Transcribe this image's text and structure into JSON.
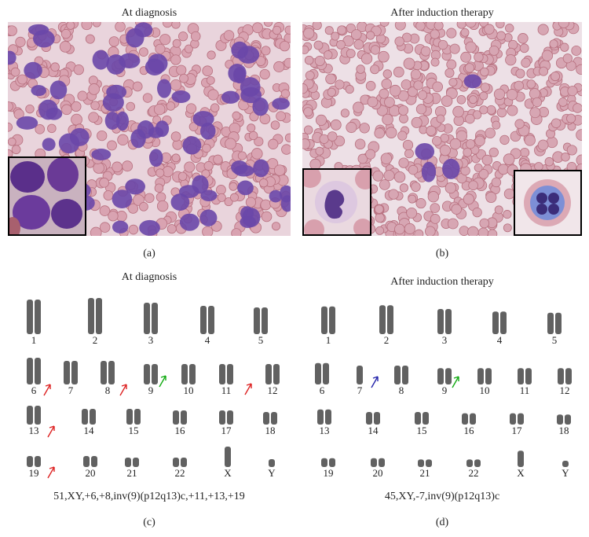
{
  "panels": [
    {
      "title": "At diagnosis",
      "label": "(a)"
    },
    {
      "title": "After induction therapy",
      "label": "(b)"
    },
    {
      "title": "At diagnosis",
      "label": "(c)",
      "chromosomes": [
        "1",
        "2",
        "3",
        "4",
        "5",
        "6",
        "7",
        "8",
        "9",
        "10",
        "11",
        "12",
        "13",
        "14",
        "15",
        "16",
        "17",
        "18",
        "19",
        "20",
        "21",
        "22",
        "X",
        "Y"
      ],
      "karyotype": "51,XY,+6,+8,inv(9)(p12q13)c,+11,+13,+19"
    },
    {
      "title": "After induction therapy",
      "label": "(d)",
      "chromosomes": [
        "1",
        "2",
        "3",
        "4",
        "5",
        "6",
        "7",
        "8",
        "9",
        "10",
        "11",
        "12",
        "13",
        "14",
        "15",
        "16",
        "17",
        "18",
        "19",
        "20",
        "21",
        "22",
        "X",
        "Y"
      ],
      "karyotype": "45,XY,-7,inv(9)(p12q13)c"
    }
  ]
}
